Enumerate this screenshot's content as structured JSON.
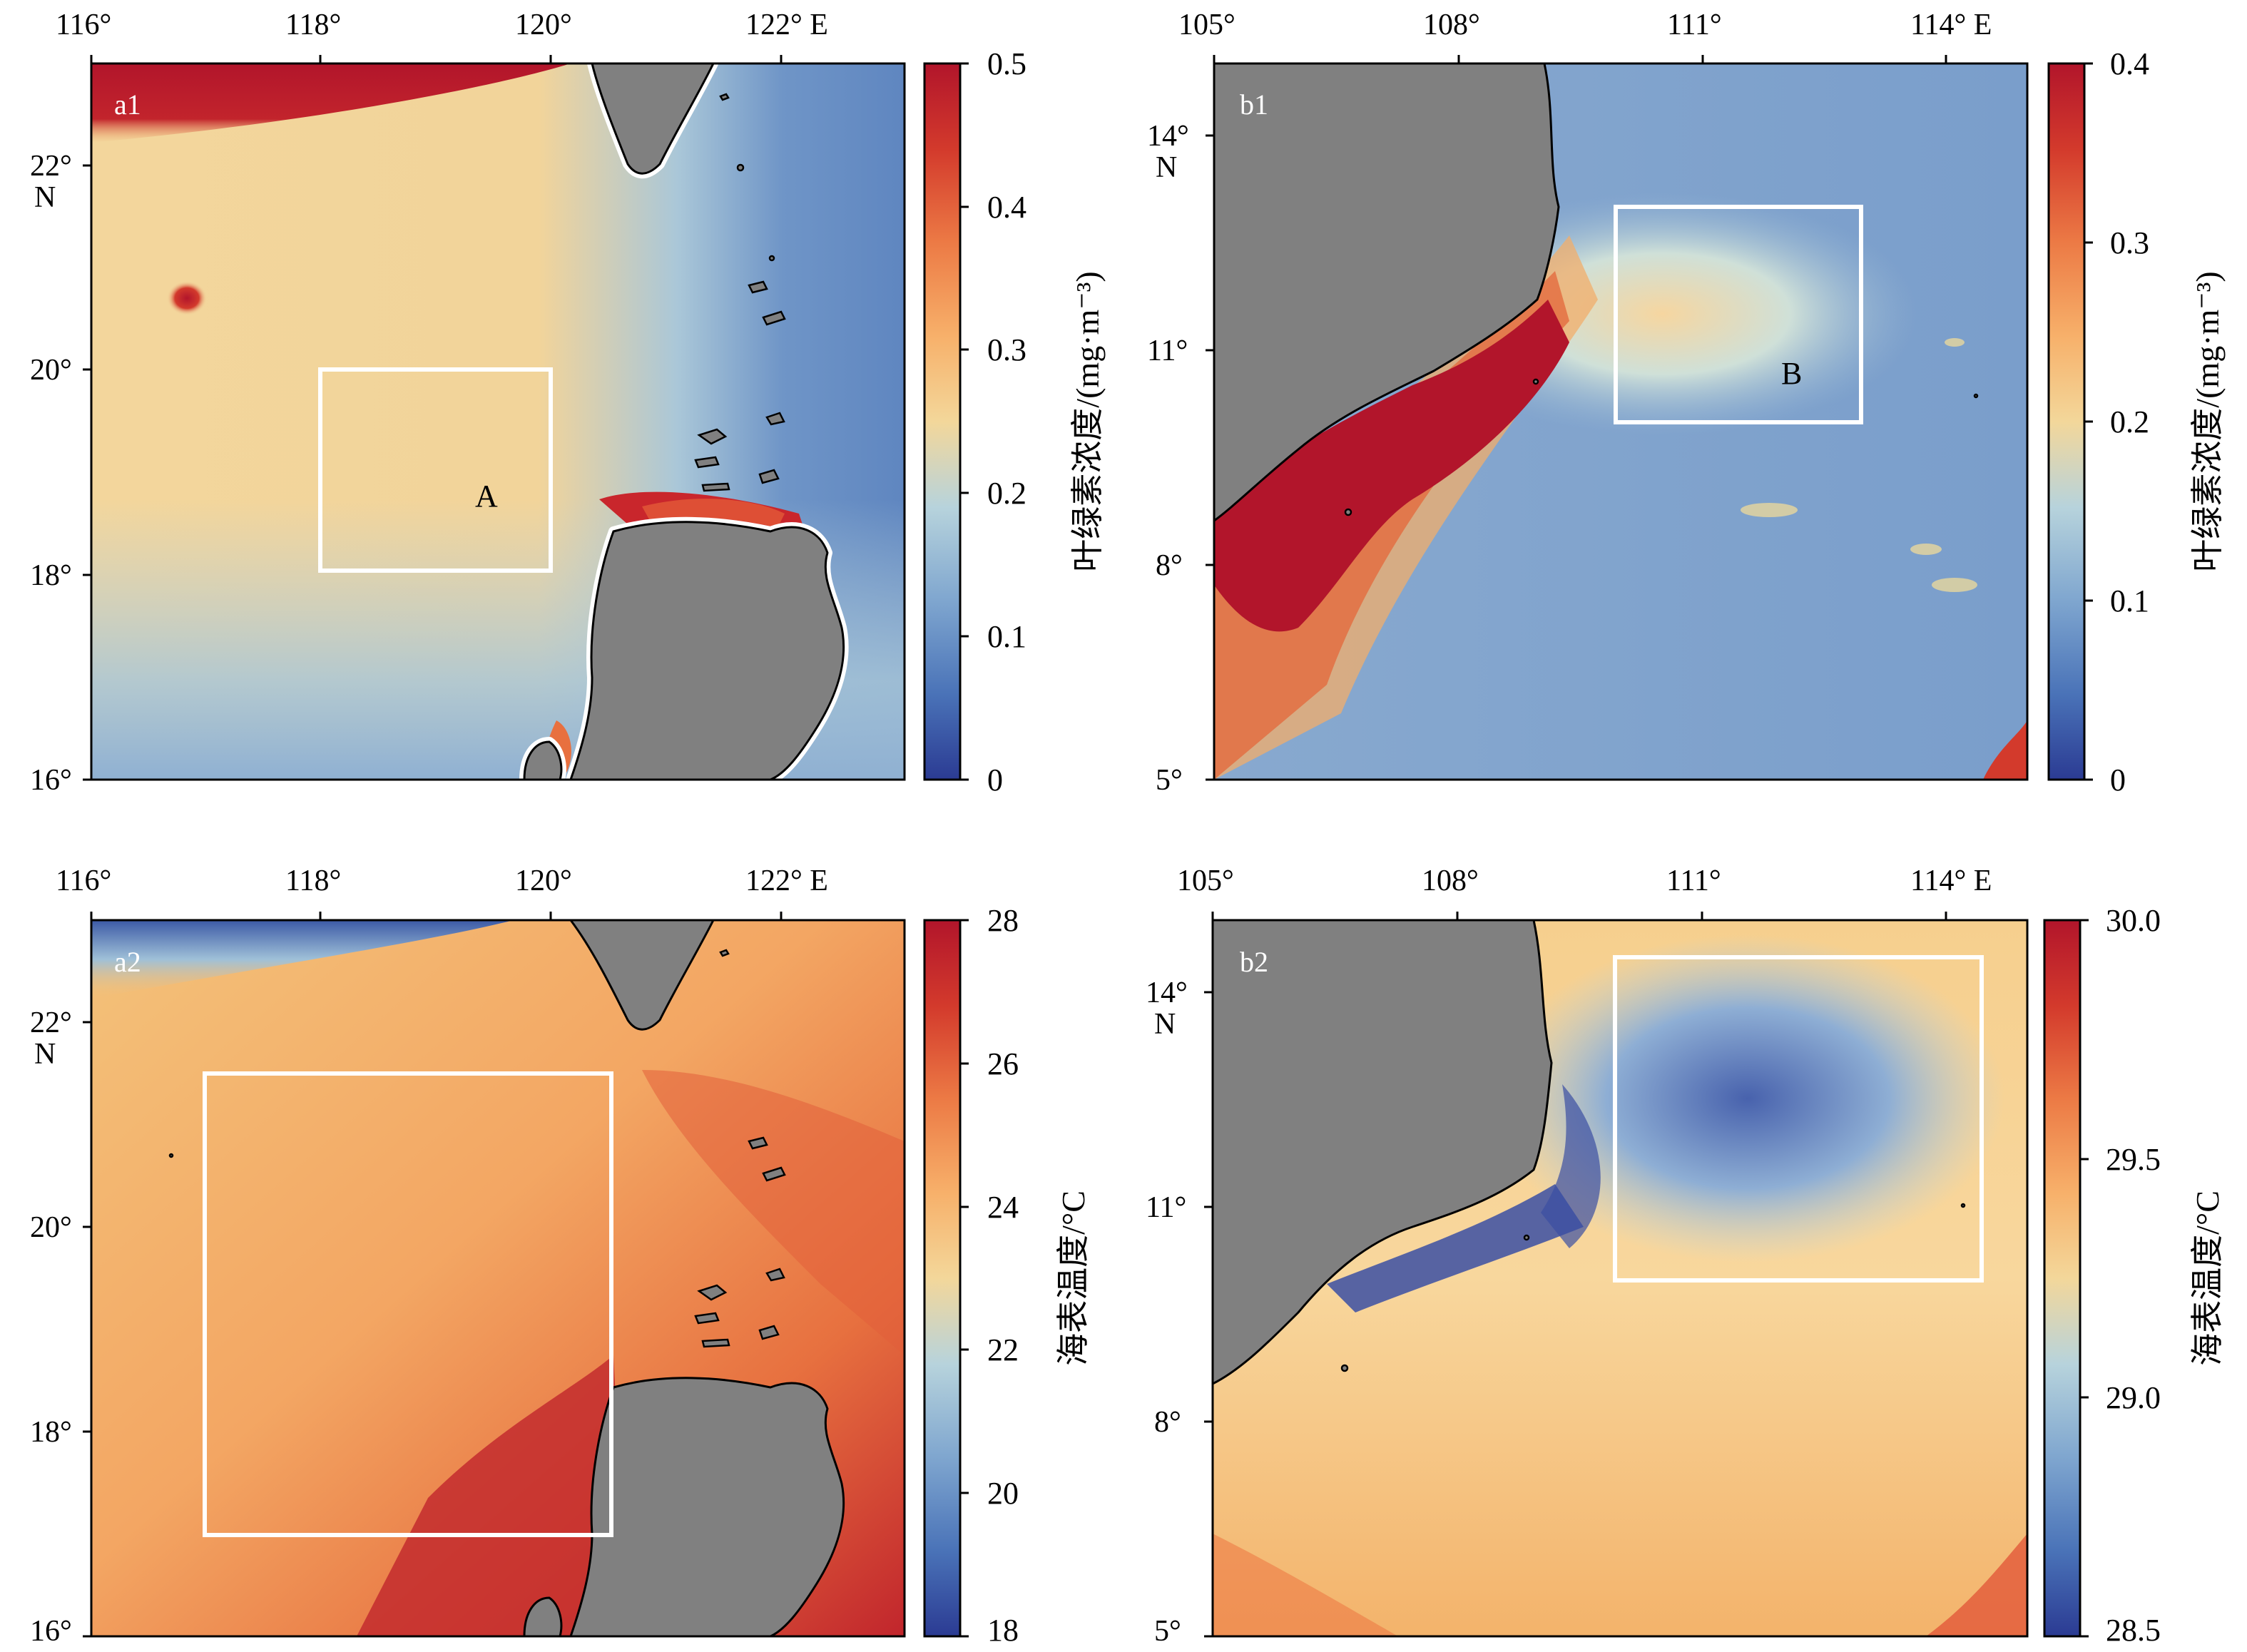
{
  "panels": {
    "a1": {
      "label": "a1",
      "lon_ticks": [
        "116°",
        "118°",
        "120°",
        "122° E"
      ],
      "lat_ticks": [
        "22°",
        "20°",
        "18°",
        "16°"
      ],
      "lat_hemisphere": "N",
      "box_label": "A",
      "colorbar": {
        "title": "叶绿素浓度/(mg·m⁻³)",
        "ticks": [
          "0.5",
          "0.4",
          "0.3",
          "0.2",
          "0.1",
          "0"
        ]
      }
    },
    "b1": {
      "label": "b1",
      "lon_ticks": [
        "105°",
        "108°",
        "111°",
        "114° E"
      ],
      "lat_ticks": [
        "14°",
        "11°",
        "8°",
        "5°"
      ],
      "lat_hemisphere": "N",
      "box_label": "B",
      "colorbar": {
        "title": "叶绿素浓度/(mg·m⁻³)",
        "ticks": [
          "0.4",
          "0.3",
          "0.2",
          "0.1",
          "0"
        ]
      }
    },
    "a2": {
      "label": "a2",
      "lon_ticks": [
        "116°",
        "118°",
        "120°",
        "122° E"
      ],
      "lat_ticks": [
        "22°",
        "20°",
        "18°",
        "16°"
      ],
      "lat_hemisphere": "N",
      "colorbar": {
        "title": "海表温度/°C",
        "ticks": [
          "28",
          "26",
          "24",
          "22",
          "20",
          "18"
        ]
      }
    },
    "b2": {
      "label": "b2",
      "lon_ticks": [
        "105°",
        "108°",
        "111°",
        "114° E"
      ],
      "lat_ticks": [
        "14°",
        "11°",
        "8°",
        "5°"
      ],
      "lat_hemisphere": "N",
      "colorbar": {
        "title": "海表温度/°C",
        "ticks": [
          "30.0",
          "29.5",
          "29.0",
          "28.5"
        ]
      }
    }
  },
  "colormap": [
    "#2b3b93",
    "#4a73b8",
    "#7fa6cf",
    "#b7d3dc",
    "#f3d79a",
    "#f7b06a",
    "#ec7a45",
    "#d33a2c",
    "#b2152b"
  ],
  "land_color": "#808080"
}
